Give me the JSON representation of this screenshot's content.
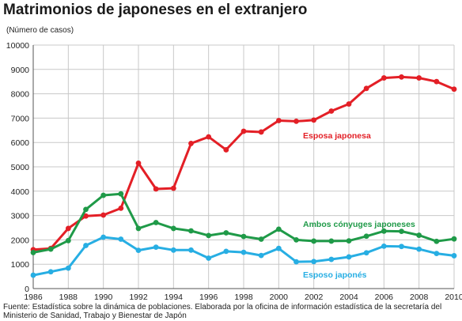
{
  "title": "Matrimonios de japoneses en el extranjero",
  "unit_label": "(Número de casos)",
  "source_text": "Fuente: Estadística sobre la dinámica de poblaciones. Elaborada por la oficina de información estadística de la secretaría del Ministerio de Sanidad, Trabajo y Bienestar de Japón",
  "chart_data": {
    "type": "line",
    "title": "Matrimonios de japoneses en el extranjero",
    "ylabel": "(Número de casos)",
    "xlabel": "",
    "xlim": [
      1986,
      2010
    ],
    "ylim": [
      0,
      10000
    ],
    "x_ticks": [
      1986,
      1988,
      1990,
      1992,
      1994,
      1996,
      1998,
      2000,
      2002,
      2004,
      2006,
      2008,
      2010
    ],
    "y_ticks": [
      0,
      1000,
      2000,
      3000,
      4000,
      5000,
      6000,
      7000,
      8000,
      9000,
      10000
    ],
    "grid": true,
    "x": [
      1986,
      1987,
      1988,
      1989,
      1990,
      1991,
      1992,
      1993,
      1994,
      1995,
      1996,
      1997,
      1998,
      1999,
      2000,
      2001,
      2002,
      2003,
      2004,
      2005,
      2006,
      2007,
      2008,
      2009,
      2010
    ],
    "series": [
      {
        "name": "Esposa japonesa",
        "color": "#e31f26",
        "values": [
          1600,
          1650,
          2470,
          2980,
          3020,
          3300,
          5150,
          4090,
          4120,
          5960,
          6230,
          5700,
          6460,
          6430,
          6900,
          6870,
          6920,
          7290,
          7580,
          8220,
          8650,
          8690,
          8650,
          8500,
          8190
        ]
      },
      {
        "name": "Ambos cónyuges japoneses",
        "color": "#1f9a48",
        "values": [
          1480,
          1620,
          1970,
          3250,
          3830,
          3890,
          2470,
          2710,
          2470,
          2370,
          2180,
          2290,
          2140,
          2030,
          2440,
          2000,
          1950,
          1950,
          1960,
          2150,
          2360,
          2350,
          2190,
          1940,
          2040
        ]
      },
      {
        "name": "Esposo japonés",
        "color": "#27aee3",
        "values": [
          550,
          690,
          840,
          1770,
          2110,
          2030,
          1570,
          1700,
          1580,
          1580,
          1250,
          1530,
          1490,
          1360,
          1650,
          1100,
          1110,
          1200,
          1300,
          1470,
          1740,
          1730,
          1620,
          1440,
          1350
        ]
      }
    ]
  }
}
